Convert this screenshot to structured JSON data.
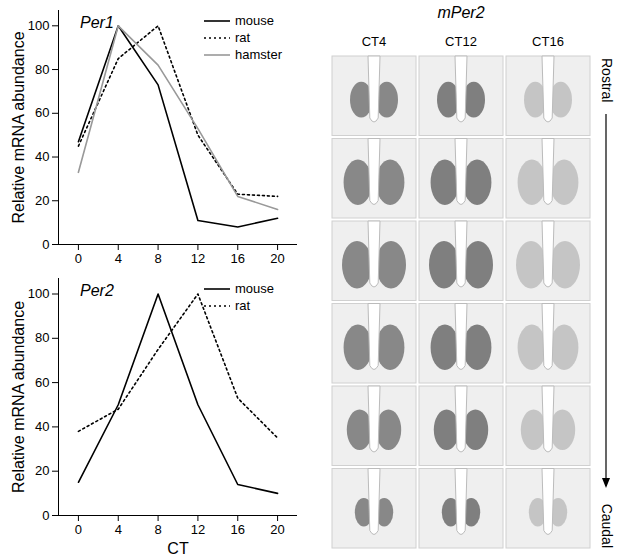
{
  "chart_data": [
    {
      "type": "line",
      "title": "Per1",
      "y_label": "Relative mRNA abundance",
      "x": [
        0,
        4,
        8,
        12,
        16,
        20
      ],
      "xlim": [
        -2,
        22
      ],
      "xticks": [
        0,
        4,
        8,
        12,
        16,
        20
      ],
      "ylim": [
        0,
        107
      ],
      "yticks": [
        0,
        20,
        40,
        60,
        80,
        100
      ],
      "legend": "top-right",
      "series": [
        {
          "name": "mouse",
          "color": "#000000",
          "line_style": "solid",
          "values": [
            47,
            100,
            73,
            11,
            8,
            12
          ]
        },
        {
          "name": "rat",
          "color": "#000000",
          "line_style": "dotted",
          "values": [
            45,
            85,
            100,
            50,
            23,
            22
          ]
        },
        {
          "name": "hamster",
          "color": "#999999",
          "line_style": "solid",
          "values": [
            33,
            100,
            82,
            53,
            22,
            16
          ]
        }
      ]
    },
    {
      "type": "line",
      "title": "Per2",
      "y_label": "Relative mRNA abundance",
      "x_label": "CT",
      "x": [
        0,
        4,
        8,
        12,
        16,
        20
      ],
      "xlim": [
        -2,
        22
      ],
      "xticks": [
        0,
        4,
        8,
        12,
        16,
        20
      ],
      "ylim": [
        0,
        107
      ],
      "yticks": [
        0,
        20,
        40,
        60,
        80,
        100
      ],
      "legend": "top-right",
      "series": [
        {
          "name": "mouse",
          "color": "#000000",
          "line_style": "solid",
          "values": [
            15,
            50,
            100,
            50,
            14,
            10
          ]
        },
        {
          "name": "rat",
          "color": "#000000",
          "line_style": "dotted",
          "values": [
            38,
            48,
            75,
            100,
            53,
            35
          ]
        }
      ]
    }
  ],
  "micrographs": {
    "title": "mPer2",
    "columns": [
      "CT4",
      "CT12",
      "CT16"
    ],
    "axis_start": "Rostral",
    "axis_end": "Caudal"
  }
}
